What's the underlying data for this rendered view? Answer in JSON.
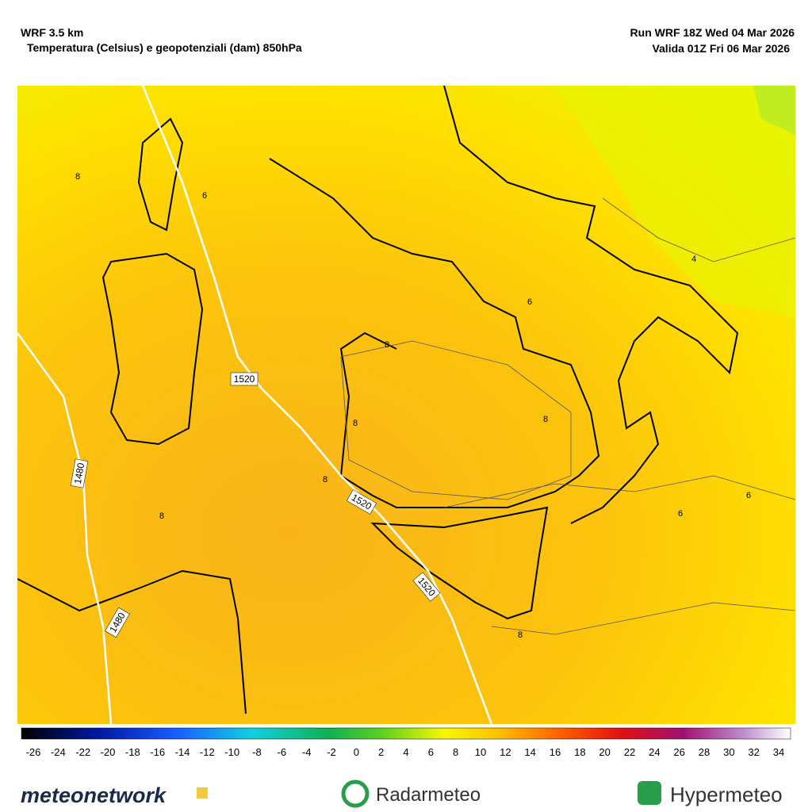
{
  "header": {
    "model": "WRF 3.5 km",
    "field": "Temperatura (Celsius) e geopotenziali (dam) 850hPa",
    "run": "Run WRF 18Z Wed 04 Mar 2026",
    "valid": "Valida 01Z Fri 06 Mar 2026"
  },
  "map": {
    "contour_labels": [
      "1520",
      "1520",
      "1520",
      "1480",
      "1480",
      "8",
      "8",
      "8",
      "8",
      "8",
      "8",
      "8",
      "6",
      "6",
      "6",
      "6",
      "4"
    ]
  },
  "colorbar": {
    "labels": [
      -26,
      -24,
      -22,
      -20,
      -18,
      -16,
      -14,
      -12,
      -10,
      -8,
      -6,
      -4,
      -2,
      0,
      2,
      4,
      6,
      8,
      10,
      12,
      14,
      16,
      18,
      20,
      22,
      24,
      26,
      28,
      30,
      32,
      34
    ]
  },
  "footer": {
    "logos": [
      "meteonetwork",
      "Radarmeteo",
      "Hypermeteo"
    ]
  }
}
